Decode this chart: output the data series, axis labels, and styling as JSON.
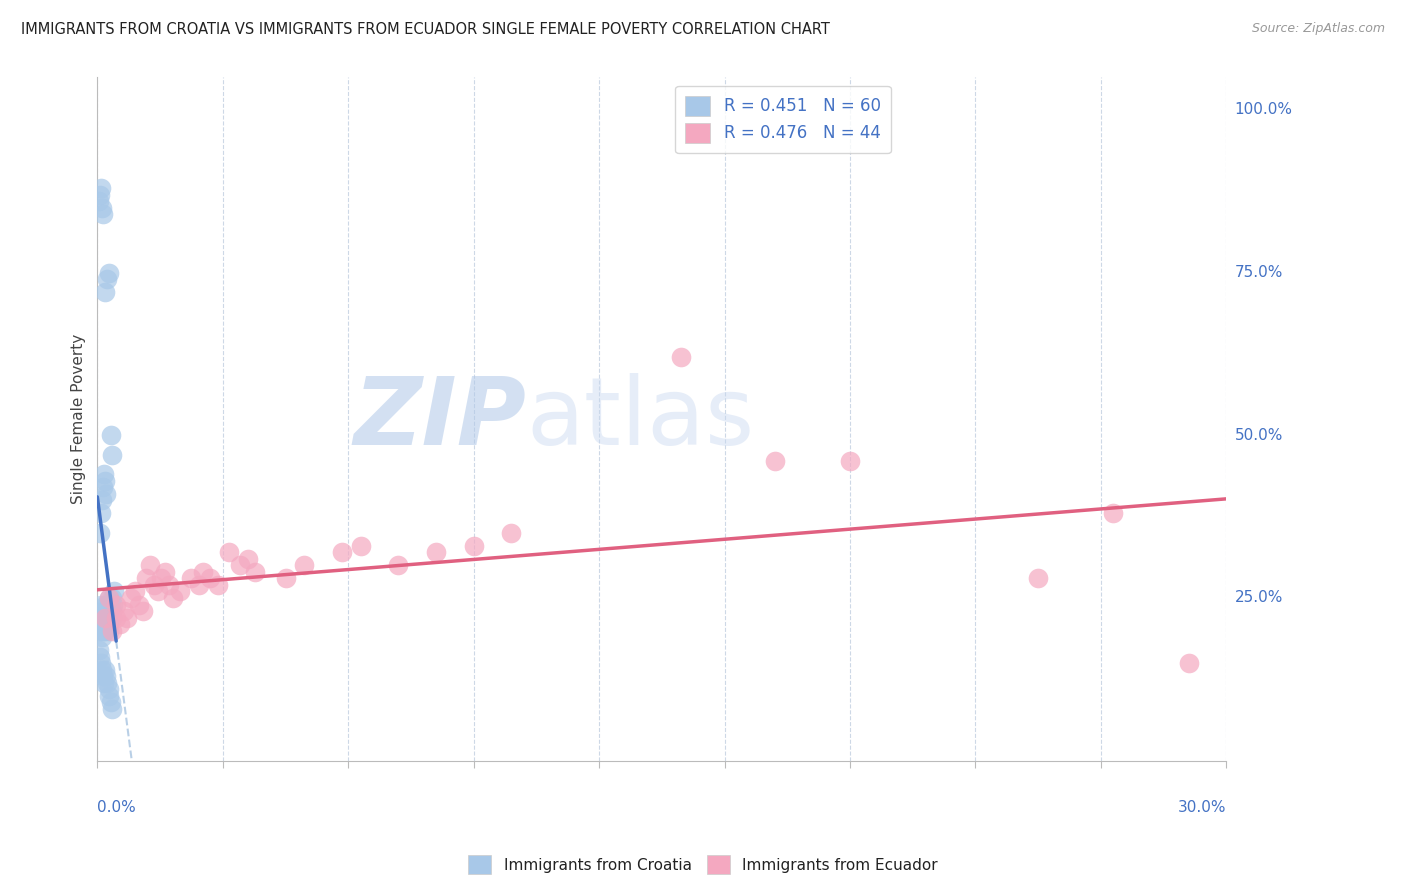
{
  "title": "IMMIGRANTS FROM CROATIA VS IMMIGRANTS FROM ECUADOR SINGLE FEMALE POVERTY CORRELATION CHART",
  "source": "Source: ZipAtlas.com",
  "ylabel": "Single Female Poverty",
  "ylabel_right_ticks": [
    "100.0%",
    "75.0%",
    "50.0%",
    "25.0%"
  ],
  "ylabel_right_vals": [
    1.0,
    0.75,
    0.5,
    0.25
  ],
  "xlim": [
    0.0,
    0.3
  ],
  "ylim": [
    0.0,
    1.05
  ],
  "legend_label_1": "R = 0.451   N = 60",
  "legend_label_2": "R = 0.476   N = 44",
  "croatia_dot_color": "#a8c8e8",
  "croatia_line_color": "#4472c4",
  "ecuador_dot_color": "#f4a8c0",
  "ecuador_line_color": "#e06080",
  "watermark_zip": "ZIP",
  "watermark_atlas": "atlas",
  "grid_color": "#c8d4e4",
  "bg_color": "#ffffff",
  "bottom_legend_label1": "Immigrants from Croatia",
  "bottom_legend_label2": "Immigrants from Ecuador",
  "croatia_x": [
    0.0005,
    0.0008,
    0.001,
    0.001,
    0.0012,
    0.0012,
    0.0015,
    0.0015,
    0.0018,
    0.0018,
    0.002,
    0.002,
    0.002,
    0.002,
    0.0022,
    0.0022,
    0.0025,
    0.0025,
    0.0028,
    0.003,
    0.003,
    0.003,
    0.0032,
    0.0032,
    0.0035,
    0.0038,
    0.004,
    0.004,
    0.0042,
    0.0045,
    0.0005,
    0.0008,
    0.001,
    0.0012,
    0.0015,
    0.0018,
    0.002,
    0.0022,
    0.0025,
    0.003,
    0.003,
    0.0035,
    0.004,
    0.0008,
    0.001,
    0.0012,
    0.0015,
    0.0018,
    0.002,
    0.0022,
    0.0005,
    0.0008,
    0.001,
    0.0012,
    0.0015,
    0.002,
    0.0025,
    0.003,
    0.0035,
    0.004
  ],
  "croatia_y": [
    0.22,
    0.2,
    0.24,
    0.21,
    0.2,
    0.19,
    0.22,
    0.21,
    0.23,
    0.2,
    0.24,
    0.22,
    0.21,
    0.2,
    0.23,
    0.21,
    0.24,
    0.22,
    0.21,
    0.23,
    0.25,
    0.2,
    0.22,
    0.21,
    0.23,
    0.22,
    0.25,
    0.23,
    0.24,
    0.26,
    0.17,
    0.16,
    0.15,
    0.14,
    0.13,
    0.12,
    0.14,
    0.13,
    0.12,
    0.11,
    0.1,
    0.09,
    0.08,
    0.35,
    0.38,
    0.4,
    0.42,
    0.44,
    0.43,
    0.41,
    0.86,
    0.87,
    0.88,
    0.85,
    0.84,
    0.72,
    0.74,
    0.75,
    0.5,
    0.47
  ],
  "ecuador_x": [
    0.002,
    0.003,
    0.004,
    0.005,
    0.005,
    0.006,
    0.007,
    0.008,
    0.009,
    0.01,
    0.011,
    0.012,
    0.013,
    0.014,
    0.015,
    0.016,
    0.017,
    0.018,
    0.019,
    0.02,
    0.022,
    0.025,
    0.027,
    0.028,
    0.03,
    0.032,
    0.035,
    0.038,
    0.04,
    0.042,
    0.05,
    0.055,
    0.065,
    0.07,
    0.08,
    0.09,
    0.1,
    0.11,
    0.155,
    0.18,
    0.2,
    0.25,
    0.27,
    0.29
  ],
  "ecuador_y": [
    0.22,
    0.25,
    0.2,
    0.22,
    0.24,
    0.21,
    0.23,
    0.22,
    0.25,
    0.26,
    0.24,
    0.23,
    0.28,
    0.3,
    0.27,
    0.26,
    0.28,
    0.29,
    0.27,
    0.25,
    0.26,
    0.28,
    0.27,
    0.29,
    0.28,
    0.27,
    0.32,
    0.3,
    0.31,
    0.29,
    0.28,
    0.3,
    0.32,
    0.33,
    0.3,
    0.32,
    0.33,
    0.35,
    0.62,
    0.46,
    0.46,
    0.28,
    0.38,
    0.15
  ]
}
